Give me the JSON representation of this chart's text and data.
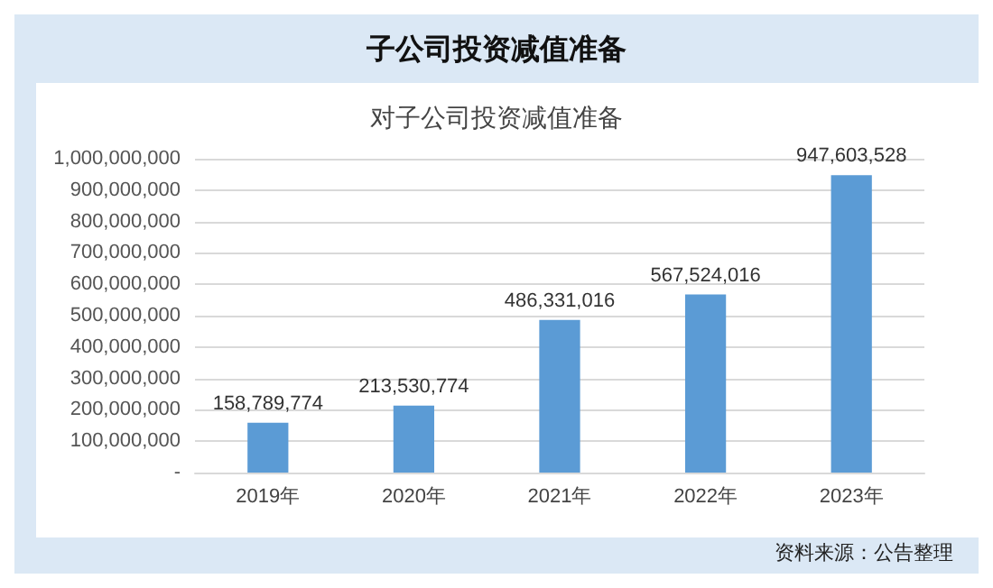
{
  "chart_data": {
    "type": "bar",
    "title": "子公司投资减值准备",
    "subtitle": "对子公司投资减值准备",
    "categories": [
      "2019年",
      "2020年",
      "2021年",
      "2022年",
      "2023年"
    ],
    "values": [
      158789774,
      213530774,
      486331016,
      567524016,
      947603528
    ],
    "color": "#5b9bd5",
    "value_labels": [
      "158,789,774",
      "213,530,774",
      "486,331,016",
      "567,524,016",
      "947,603,528"
    ],
    "ylim": [
      0,
      1000000000
    ],
    "yticks": [
      {
        "value": 0,
        "label": "-"
      },
      {
        "value": 100000000,
        "label": "100,000,000"
      },
      {
        "value": 200000000,
        "label": "200,000,000"
      },
      {
        "value": 300000000,
        "label": "300,000,000"
      },
      {
        "value": 400000000,
        "label": "400,000,000"
      },
      {
        "value": 500000000,
        "label": "500,000,000"
      },
      {
        "value": 600000000,
        "label": "600,000,000"
      },
      {
        "value": 700000000,
        "label": "700,000,000"
      },
      {
        "value": 800000000,
        "label": "800,000,000"
      },
      {
        "value": 900000000,
        "label": "900,000,000"
      },
      {
        "value": 1000000000,
        "label": "1,000,000,000"
      }
    ],
    "grid": "y",
    "annotations": [
      "资料来源：公告整理"
    ]
  }
}
